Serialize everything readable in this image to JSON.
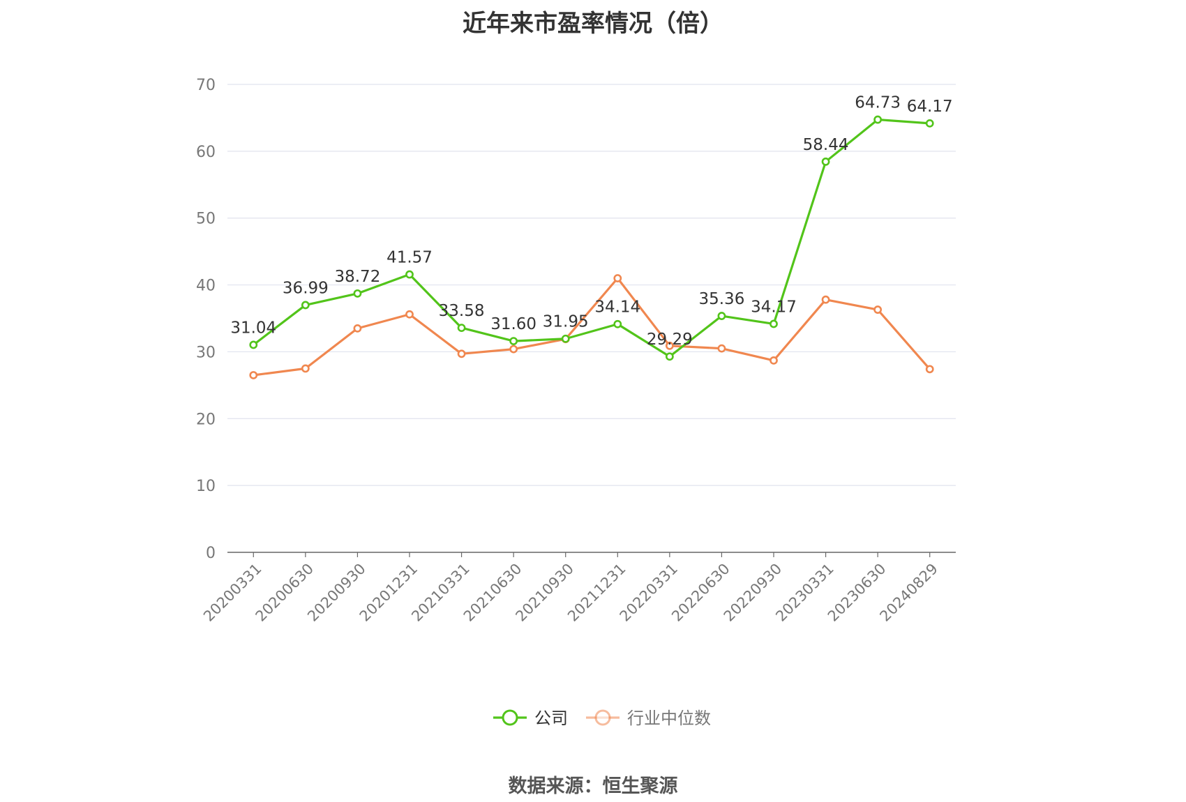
{
  "title": "近年来市盈率情况（倍）",
  "source": "数据来源：恒生聚源",
  "chart_data": {
    "type": "line",
    "title": "近年来市盈率情况（倍）",
    "xlabel": "",
    "ylabel": "",
    "x": [
      "20200331",
      "20200630",
      "20200930",
      "20201231",
      "20210331",
      "20210630",
      "20210930",
      "20211231",
      "20220331",
      "20220630",
      "20220930",
      "20230331",
      "20230630",
      "20240829"
    ],
    "ylim": [
      0,
      70
    ],
    "yticks": [
      0,
      10,
      20,
      30,
      40,
      50,
      60,
      70
    ],
    "grid": true,
    "legend_position": "bottom",
    "series": [
      {
        "name": "公司",
        "color": "#52c41a",
        "values": [
          31.04,
          36.99,
          38.72,
          41.57,
          33.58,
          31.6,
          31.95,
          34.14,
          29.29,
          35.36,
          34.17,
          58.44,
          64.73,
          64.17
        ],
        "labels": [
          "31.04",
          "36.99",
          "38.72",
          "41.57",
          "33.58",
          "31.60",
          "31.95",
          "34.14",
          "29.29",
          "35.36",
          "34.17",
          "58.44",
          "64.73",
          "64.17"
        ]
      },
      {
        "name": "行业中位数",
        "color": "#f0874f",
        "values": [
          26.5,
          27.5,
          33.5,
          35.6,
          29.7,
          30.4,
          31.9,
          41.0,
          30.9,
          30.5,
          28.7,
          37.8,
          36.3,
          27.4
        ]
      }
    ]
  }
}
